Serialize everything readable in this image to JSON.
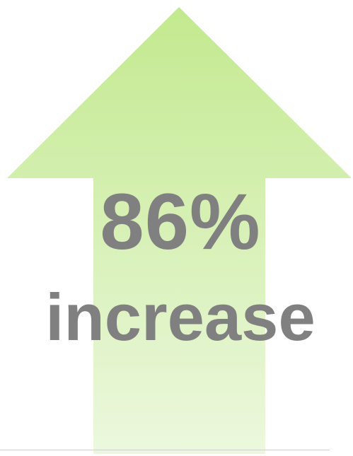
{
  "stat": {
    "value": "86%",
    "label": "increase"
  },
  "icon": "up-arrow-icon",
  "colors": {
    "arrow_top": "#c3e98f",
    "arrow_bottom": "#ecf8de",
    "text": "#808080",
    "baseline": "#cfcfcf"
  }
}
